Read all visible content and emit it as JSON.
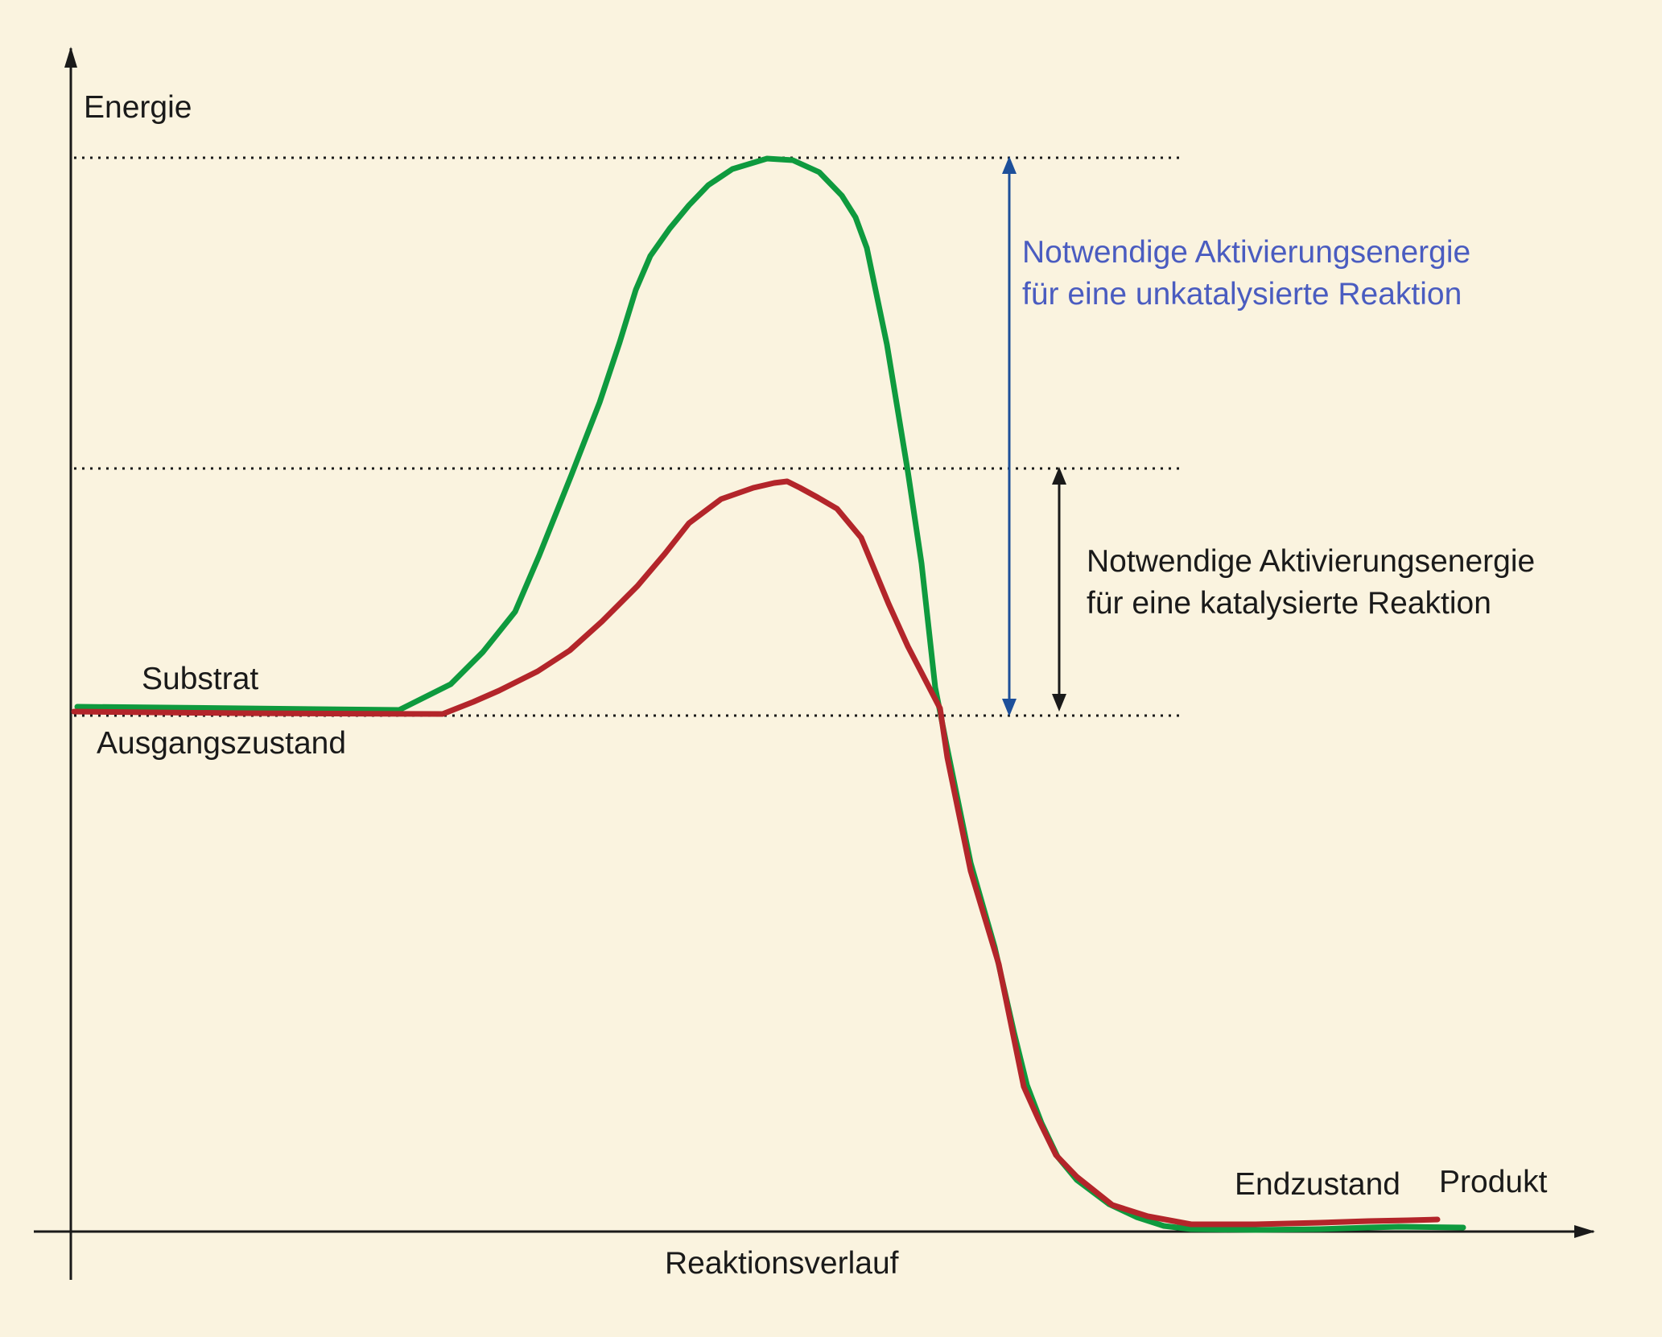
{
  "labels": {
    "y_axis": "Energie",
    "x_axis": "Reaktionsverlauf",
    "substrate": "Substrat",
    "initial_state": "Ausgangszustand",
    "final_state": "Endzustand",
    "product": "Produkt",
    "uncatalyzed_line1": "Notwendige Aktivierungsenergie",
    "uncatalyzed_line2": "für eine unkatalysierte Reaktion",
    "catalyzed_line1": "Notwendige Aktivierungsenergie",
    "catalyzed_line2": "für eine katalysierte Reaktion"
  },
  "colors": {
    "background": "#faf3df",
    "uncatalyzed_curve": "#0e9a3e",
    "catalyzed_curve": "#b3252a",
    "uncatalyzed_arrow": "#1d4f9a",
    "uncatalyzed_text": "#4a5cc0",
    "axis": "#1a1a1a",
    "text": "#1a1a1a"
  }
}
